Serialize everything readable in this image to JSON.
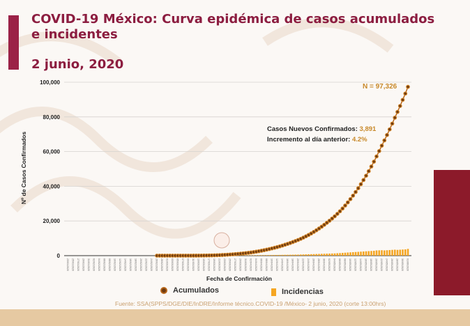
{
  "header": {
    "title": "COVID-19 México: Curva epidémica de casos acumulados e incidentes",
    "date": "2 junio, 2020"
  },
  "colors": {
    "title": "#8c1d40",
    "accent_bar": "#9b2247",
    "acumulados": "#b8661a",
    "incidencias": "#f5a623",
    "annotation_value": "#c8892a"
  },
  "chart_data": {
    "type": "line+bar",
    "xlabel": "Fecha de Confirmación",
    "ylabel": "Nº de Casos Confirmados",
    "ylim": [
      0,
      100000
    ],
    "yticks": [
      "0",
      "20,000",
      "40,000",
      "60,000",
      "80,000",
      "100,000"
    ],
    "grid": true,
    "legend_position": "bottom",
    "x_range": [
      "27/02/2020",
      "02/06/2020"
    ],
    "x_frequency": "daily",
    "series": [
      {
        "name": "Acumulados",
        "marker": "circle",
        "values": [
          1,
          1,
          2,
          3,
          3,
          4,
          4,
          4,
          5,
          5,
          6,
          7,
          9,
          12,
          17,
          25,
          37,
          52,
          72,
          97,
          127,
          162,
          202,
          252,
          312,
          382,
          462,
          552,
          652,
          762,
          882,
          1012,
          1152,
          1302,
          1462,
          1642,
          1842,
          2062,
          2302,
          2562,
          2842,
          3142,
          3462,
          3802,
          4162,
          4542,
          4942,
          5362,
          5812,
          6292,
          6792,
          7312,
          7862,
          8442,
          9042,
          9692,
          10392,
          11142,
          11942,
          12792,
          13692,
          14642,
          15642,
          16692,
          17792,
          18942,
          20142,
          21392,
          22692,
          24092,
          25592,
          27192,
          28892,
          30692,
          32592,
          34592,
          36692,
          38892,
          41192,
          43592,
          46092,
          48692,
          51392,
          54192,
          57217,
          60292,
          63417,
          66442,
          69567,
          72792,
          76117,
          79542,
          82867,
          86292,
          89817,
          93435,
          97326
        ]
      },
      {
        "name": "Incidencias",
        "marker": "bar",
        "values": [
          1,
          0,
          1,
          1,
          0,
          1,
          0,
          0,
          1,
          0,
          1,
          1,
          2,
          3,
          5,
          8,
          12,
          15,
          20,
          25,
          30,
          35,
          40,
          50,
          60,
          70,
          80,
          90,
          100,
          110,
          120,
          130,
          140,
          150,
          160,
          180,
          200,
          220,
          240,
          260,
          280,
          300,
          320,
          340,
          360,
          380,
          400,
          420,
          450,
          480,
          500,
          520,
          550,
          580,
          600,
          650,
          700,
          750,
          800,
          850,
          900,
          950,
          1000,
          1050,
          1100,
          1150,
          1200,
          1250,
          1300,
          1400,
          1500,
          1600,
          1700,
          1800,
          1900,
          2000,
          2100,
          2200,
          2300,
          2400,
          2500,
          2600,
          2700,
          2800,
          3025,
          3075,
          3125,
          3025,
          3125,
          3225,
          3325,
          3425,
          3325,
          3425,
          3525,
          3618,
          3891
        ]
      }
    ],
    "annotations": {
      "total_label": "N = 97,326",
      "nuevos_label": "Casos Nuevos Confirmados:",
      "nuevos_value": "3,891",
      "incremento_label": "Incremento al día anterior:",
      "incremento_value": "4.2%"
    }
  },
  "legend": {
    "acumulados": "Acumulados",
    "incidencias": "Incidencias"
  },
  "source": "Fuente: SSA(SPPS/DGE/DIE/InDRE/Informe técnico.COVID-19 /México- 2 junio, 2020 (corte 13:00hrs)"
}
